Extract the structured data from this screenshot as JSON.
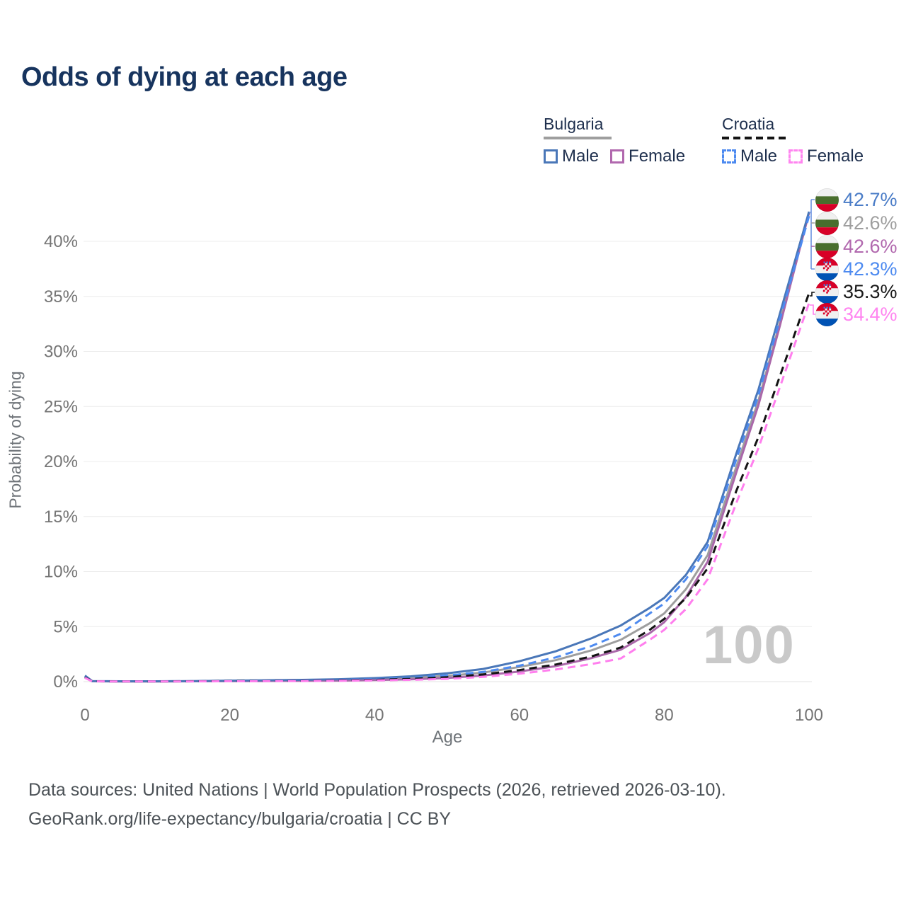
{
  "title": "Odds of dying at each age",
  "watermark": "100",
  "axes": {
    "y_title": "Probability of dying",
    "x_label": "Age"
  },
  "legend": {
    "groups": [
      {
        "country": "Bulgaria",
        "underline_color": "#9e9e9e",
        "underline_dash": false,
        "items": [
          {
            "label": "Male",
            "color": "#4a77b8",
            "dash": false
          },
          {
            "label": "Female",
            "color": "#b168ae",
            "dash": false
          }
        ]
      },
      {
        "country": "Croatia",
        "underline_color": "#141414",
        "underline_dash": true,
        "items": [
          {
            "label": "Male",
            "color": "#4d8af0",
            "dash": true
          },
          {
            "label": "Female",
            "color": "#ff85f0",
            "dash": true
          }
        ]
      }
    ]
  },
  "end_labels": [
    {
      "flag": "bulgaria",
      "value": "42.7%",
      "color": "#4a7cc7"
    },
    {
      "flag": "bulgaria",
      "value": "42.6%",
      "color": "#9e9e9e"
    },
    {
      "flag": "bulgaria",
      "value": "42.6%",
      "color": "#b168ae"
    },
    {
      "flag": "croatia",
      "value": "42.3%",
      "color": "#4d8af0"
    },
    {
      "flag": "croatia",
      "value": "35.3%",
      "color": "#1a1a1a"
    },
    {
      "flag": "croatia",
      "value": "34.4%",
      "color": "#ff85f0"
    }
  ],
  "footer": {
    "line1": "Data sources: United Nations | World Population Prospects (2026, retrieved 2026-03-10).",
    "line2": "GeoRank.org/life-expectancy/bulgaria/croatia | CC BY"
  },
  "chart_data": {
    "type": "line",
    "title": "Odds of dying at each age",
    "xlabel": "Age",
    "ylabel": "Probability of dying",
    "xlim": [
      0,
      100
    ],
    "ylim_pct": [
      0,
      44
    ],
    "xticks": [
      0,
      20,
      40,
      60,
      80,
      100
    ],
    "yticks_pct": [
      0,
      5,
      10,
      15,
      20,
      25,
      30,
      35,
      40
    ],
    "ytick_labels": [
      "0%",
      "5%",
      "10%",
      "15%",
      "20%",
      "25%",
      "30%",
      "35%",
      "40%"
    ],
    "grid": "horizontal",
    "legend_position": "top-right",
    "x": [
      0,
      1,
      5,
      10,
      15,
      20,
      25,
      30,
      35,
      40,
      45,
      50,
      55,
      60,
      65,
      70,
      74,
      78,
      80,
      83,
      86,
      90,
      93,
      96,
      100
    ],
    "series": [
      {
        "name": "Bulgaria Male",
        "color": "#4a77b8",
        "dash": null,
        "end_label": "42.7%",
        "values_pct": [
          0.55,
          0.05,
          0.03,
          0.03,
          0.05,
          0.09,
          0.12,
          0.16,
          0.22,
          0.32,
          0.48,
          0.75,
          1.15,
          1.85,
          2.75,
          3.95,
          5.1,
          6.7,
          7.6,
          9.7,
          12.7,
          20.8,
          26.5,
          33.5,
          42.7
        ]
      },
      {
        "name": "Bulgaria Both sexes",
        "color": "#9e9e9e",
        "dash": null,
        "end_label": "42.6%",
        "values_pct": [
          0.5,
          0.04,
          0.02,
          0.02,
          0.04,
          0.06,
          0.08,
          0.11,
          0.15,
          0.23,
          0.34,
          0.52,
          0.82,
          1.33,
          1.95,
          2.85,
          3.8,
          5.3,
          6.2,
          8.4,
          11.5,
          19.6,
          25.5,
          32.7,
          42.6
        ]
      },
      {
        "name": "Bulgaria Female",
        "color": "#aa68aa",
        "dash": null,
        "end_label": "42.6%",
        "values_pct": [
          0.45,
          0.03,
          0.015,
          0.015,
          0.03,
          0.04,
          0.05,
          0.07,
          0.09,
          0.14,
          0.21,
          0.33,
          0.55,
          0.92,
          1.4,
          2.15,
          2.9,
          4.4,
          5.4,
          7.7,
          10.9,
          19.1,
          25.1,
          32.4,
          42.6
        ]
      },
      {
        "name": "Croatia Male",
        "color": "#4d8af0",
        "dash": "11,7",
        "end_label": "42.3%",
        "values_pct": [
          0.45,
          0.04,
          0.02,
          0.02,
          0.04,
          0.07,
          0.09,
          0.12,
          0.16,
          0.23,
          0.34,
          0.55,
          0.88,
          1.45,
          2.2,
          3.25,
          4.35,
          6.2,
          7.1,
          9.3,
          12.3,
          20.3,
          26.0,
          33.0,
          42.3
        ]
      },
      {
        "name": "Croatia Both sexes",
        "color": "#141414",
        "dash": "11,7",
        "end_label": "35.3%",
        "values_pct": [
          0.4,
          0.03,
          0.015,
          0.015,
          0.03,
          0.05,
          0.06,
          0.08,
          0.11,
          0.17,
          0.25,
          0.4,
          0.65,
          1.05,
          1.55,
          2.3,
          3.1,
          4.7,
          5.7,
          7.6,
          10.3,
          17.4,
          22.2,
          27.8,
          35.3
        ]
      },
      {
        "name": "Croatia Female",
        "color": "#ff7fee",
        "dash": "11,7",
        "end_label": "34.4%",
        "values_pct": [
          0.35,
          0.025,
          0.01,
          0.01,
          0.02,
          0.03,
          0.04,
          0.05,
          0.07,
          0.11,
          0.16,
          0.25,
          0.43,
          0.72,
          1.1,
          1.6,
          2.1,
          3.8,
          4.7,
          6.6,
          9.3,
          16.3,
          21.2,
          26.8,
          34.4
        ]
      }
    ]
  }
}
